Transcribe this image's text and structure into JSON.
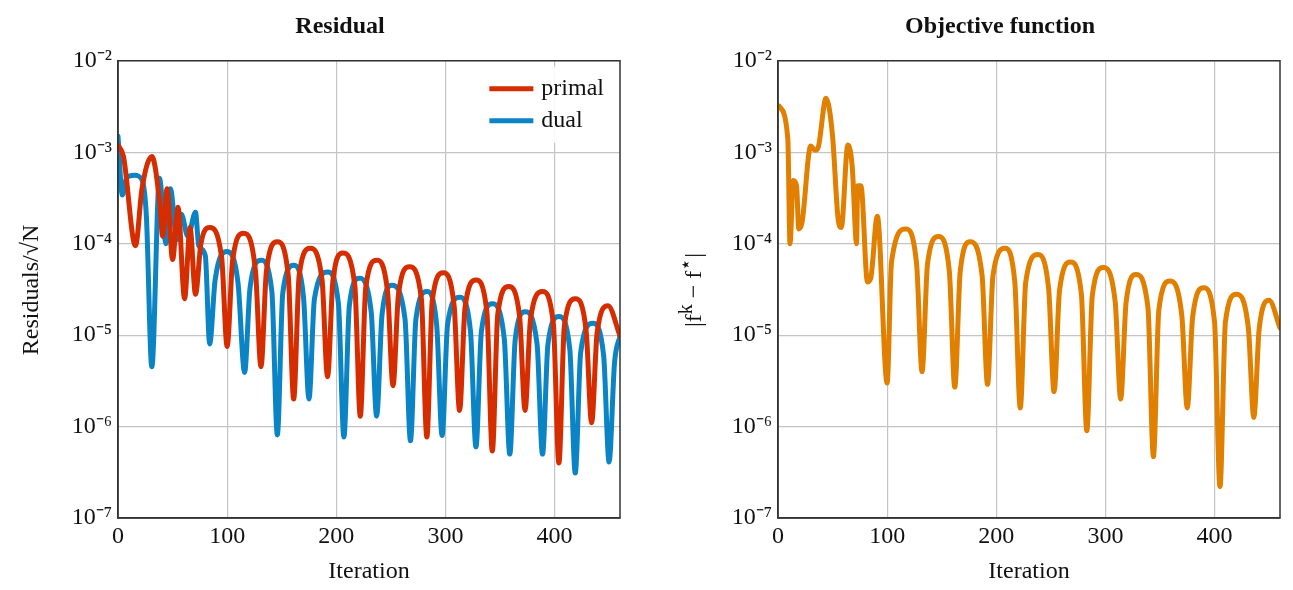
{
  "chart_data": [
    {
      "type": "line",
      "title": "Residual",
      "xlabel": "Iteration",
      "ylabel": "Residuals/√N",
      "log": "y",
      "grid": true,
      "legend": "top right",
      "marker": "none",
      "line_style": "solid",
      "xlim": [
        0,
        460
      ],
      "xticks": [
        0,
        100,
        200,
        300,
        400
      ],
      "ylim": [
        1e-07,
        0.01
      ],
      "yticks": [
        {
          "value": 1e-07,
          "label": "10⁻⁷"
        },
        {
          "value": 1e-06,
          "label": "10⁻⁶"
        },
        {
          "value": 1e-05,
          "label": "10⁻⁵"
        },
        {
          "value": 0.0001,
          "label": "10⁻⁴"
        },
        {
          "value": 0.001,
          "label": "10⁻³"
        },
        {
          "value": 0.01,
          "label": "10⁻²"
        }
      ],
      "series": [
        {
          "name": "primal",
          "color": "#d62d00",
          "x": [
            0,
            5,
            16,
            22,
            31,
            38,
            41,
            45,
            50,
            55,
            61,
            66,
            71,
            76,
            84,
            95,
            100,
            105,
            115,
            126,
            131,
            136,
            146,
            156,
            161,
            166,
            176,
            187,
            192,
            197,
            206,
            217,
            222,
            227,
            237,
            247,
            252,
            257,
            267,
            278,
            283,
            288,
            298,
            308,
            313,
            318,
            328,
            338,
            343,
            348,
            358,
            368,
            373,
            378,
            389,
            399,
            404,
            409,
            419,
            429,
            434,
            439,
            449,
            460
          ],
          "values": [
            0.0012,
            0.0009,
            9.5e-05,
            0.0004,
            0.0009,
            0.0003,
            0.00012,
            0.0004,
            6.7e-05,
            0.00025,
            2.5e-05,
            0.00015,
            2.8e-05,
            0.0001,
            0.00015,
            7e-05,
            7.5e-06,
            6.5e-05,
            0.00013,
            5e-05,
            4.5e-06,
            5e-05,
            0.000105,
            4.5e-05,
            2e-06,
            4.5e-05,
            8.9e-05,
            4e-05,
            3.5e-06,
            4e-05,
            7.9e-05,
            3.5e-05,
            1.3e-06,
            3.3e-05,
            6.6e-05,
            3e-05,
            2.8e-06,
            2.8e-05,
            5.6e-05,
            2.5e-05,
            7.7e-07,
            2.4e-05,
            4.8e-05,
            2.1e-05,
            1.5e-06,
            2e-05,
            4e-05,
            1.8e-05,
            5.4e-07,
            1.7e-05,
            3.4e-05,
            1.6e-05,
            1.5e-06,
            1.5e-05,
            3e-05,
            1.3e-05,
            4e-07,
            1.25e-05,
            2.5e-05,
            1.1e-05,
            1.1e-06,
            1.05e-05,
            2.1e-05,
            9.8e-06
          ]
        },
        {
          "name": "dual",
          "color": "#0b84c6",
          "x": [
            0,
            4,
            8,
            15,
            22,
            26,
            31,
            38,
            44,
            48,
            54,
            58,
            64,
            71,
            74,
            80,
            84,
            89,
            100,
            110,
            116,
            121,
            131,
            141,
            146,
            151,
            161,
            170,
            175,
            180,
            192,
            202,
            207,
            212,
            221,
            232,
            237,
            242,
            251,
            263,
            268,
            273,
            283,
            292,
            297,
            302,
            313,
            323,
            328,
            333,
            343,
            354,
            359,
            364,
            373,
            384,
            389,
            394,
            404,
            414,
            419,
            424,
            435,
            445,
            450,
            455,
            460
          ],
          "values": [
            0.0015,
            0.00034,
            0.00053,
            0.00056,
            0.0005,
            0.0002,
            4.5e-06,
            0.00052,
            0.0001,
            0.0004,
            0.00011,
            0.00021,
            0.00012,
            0.00022,
            9.5e-05,
            7.4e-05,
            8e-06,
            4e-05,
            8.2e-05,
            3.7e-05,
            3.9e-06,
            3.3e-05,
            6.6e-05,
            3e-05,
            8.1e-07,
            2.9e-05,
            5.8e-05,
            2.6e-05,
            2e-06,
            2.5e-05,
            4.9e-05,
            2.2e-05,
            7.7e-07,
            2.1e-05,
            4.2e-05,
            1.8e-05,
            1.3e-06,
            1.7e-05,
            3.5e-05,
            1.5e-05,
            7e-07,
            1.5e-05,
            3e-05,
            1.3e-05,
            8e-07,
            1.3e-05,
            2.6e-05,
            1.1e-05,
            6e-07,
            1.1e-05,
            2.2e-05,
            9e-06,
            5e-07,
            9e-06,
            1.8e-05,
            8e-06,
            5e-07,
            8e-06,
            1.6e-05,
            7e-06,
            3.1e-07,
            6.5e-06,
            1.35e-05,
            6e-06,
            4.1e-07,
            5e-06,
            9.8e-06
          ]
        }
      ]
    },
    {
      "type": "line",
      "title": "Objective function",
      "xlabel": "Iteration",
      "ylabel": "|f$^{k}$ − f$^{⋆}$|",
      "log": "y",
      "grid": true,
      "marker": "none",
      "line_style": "solid",
      "xlim": [
        0,
        460
      ],
      "xticks": [
        0,
        100,
        200,
        300,
        400
      ],
      "ylim": [
        1e-07,
        0.01
      ],
      "yticks": [
        {
          "value": 1e-07,
          "label": "10⁻⁷"
        },
        {
          "value": 1e-06,
          "label": "10⁻⁶"
        },
        {
          "value": 1e-05,
          "label": "10⁻⁵"
        },
        {
          "value": 0.0001,
          "label": "10⁻⁴"
        },
        {
          "value": 0.001,
          "label": "10⁻³"
        },
        {
          "value": 0.01,
          "label": "10⁻²"
        }
      ],
      "series": [
        {
          "color": "#e07f00",
          "x": [
            1,
            9,
            11,
            14,
            17,
            19,
            22,
            30,
            34,
            37,
            44,
            50,
            55,
            58,
            64,
            68,
            72,
            73,
            76,
            82,
            85,
            91,
            100,
            104,
            117,
            127,
            132,
            137,
            147,
            157,
            162,
            167,
            176,
            187,
            192,
            197,
            208,
            217,
            222,
            227,
            238,
            248,
            253,
            258,
            268,
            278,
            283,
            288,
            298,
            309,
            314,
            319,
            328,
            339,
            344,
            349,
            359,
            370,
            375,
            380,
            390,
            400,
            405,
            410,
            420,
            431,
            436,
            441,
            450,
            460
          ],
          "values": [
            0.0032,
            0.0014,
            0.0001,
            0.00049,
            0.00043,
            0.000145,
            0.00017,
            0.00117,
            0.00105,
            0.00115,
            0.0039,
            0.0015,
            0.00019,
            0.00015,
            0.0012,
            0.0007,
            0.0001,
            0.00043,
            0.00043,
            3.8e-05,
            4.2e-05,
            0.0002,
            3e-06,
            6.3e-05,
            0.000145,
            6e-05,
            4e-06,
            6e-05,
            0.00012,
            5e-05,
            2.7e-06,
            5e-05,
            0.000105,
            4.5e-05,
            2.9e-06,
            4.5e-05,
            8.9e-05,
            3.8e-05,
            1.6e-06,
            3.8e-05,
            7.6e-05,
            3.2e-05,
            2.4e-06,
            3.1e-05,
            6.3e-05,
            2.8e-05,
            9e-07,
            2.7e-05,
            5.5e-05,
            2.3e-05,
            2e-06,
            2.3e-05,
            4.6e-05,
            2e-05,
            4.7e-07,
            1.9e-05,
            3.9e-05,
            1.65e-05,
            1.6e-06,
            1.6e-05,
            3.3e-05,
            1.4e-05,
            2.2e-07,
            1.4e-05,
            2.8e-05,
            1.2e-05,
            1.26e-06,
            1.2e-05,
            2.4e-05,
            1.2e-05
          ]
        }
      ]
    }
  ]
}
